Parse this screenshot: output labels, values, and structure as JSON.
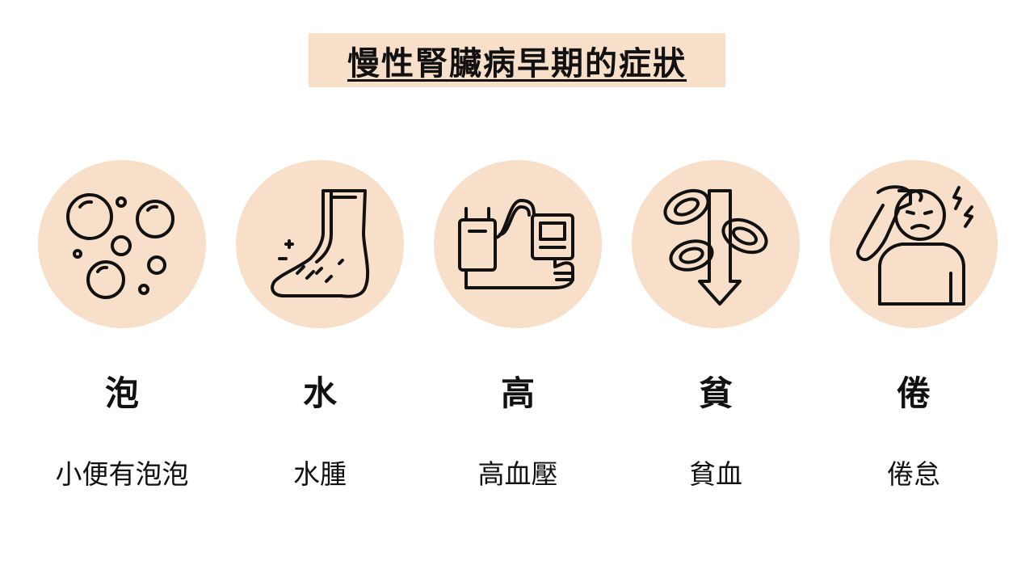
{
  "title": "慢性腎臟病早期的症狀",
  "colors": {
    "accent_fill": "#f8dfca",
    "text": "#111111",
    "background": "#ffffff"
  },
  "symptoms": [
    {
      "key": "泡",
      "label": "小便有泡泡",
      "icon": "bubbles-icon"
    },
    {
      "key": "水",
      "label": "水腫",
      "icon": "swollen-foot-icon"
    },
    {
      "key": "高",
      "label": "高血壓",
      "icon": "blood-pressure-monitor-icon"
    },
    {
      "key": "貧",
      "label": "貧血",
      "icon": "low-red-blood-cells-icon"
    },
    {
      "key": "倦",
      "label": "倦怠",
      "icon": "tired-person-icon"
    }
  ]
}
